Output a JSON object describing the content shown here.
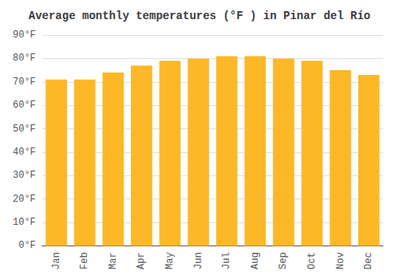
{
  "chart_data": {
    "type": "bar",
    "title": "Average monthly temperatures (°F ) in Pinar del Río",
    "categories": [
      "Jan",
      "Feb",
      "Mar",
      "Apr",
      "May",
      "Jun",
      "Jul",
      "Aug",
      "Sep",
      "Oct",
      "Nov",
      "Dec"
    ],
    "values": [
      71,
      71,
      74,
      77,
      79,
      80,
      81,
      81,
      80,
      79,
      75,
      73
    ],
    "color": "#FDB827",
    "ylim": [
      0,
      90
    ],
    "yticks": [
      {
        "value": 0,
        "label": "0°F"
      },
      {
        "value": 10,
        "label": "10°F"
      },
      {
        "value": 20,
        "label": "20°F"
      },
      {
        "value": 30,
        "label": "30°F"
      },
      {
        "value": 40,
        "label": "40°F"
      },
      {
        "value": 50,
        "label": "50°F"
      },
      {
        "value": 60,
        "label": "60°F"
      },
      {
        "value": 70,
        "label": "70°F"
      },
      {
        "value": 80,
        "label": "80°F"
      },
      {
        "value": 90,
        "label": "90°F"
      }
    ],
    "grid": true
  }
}
